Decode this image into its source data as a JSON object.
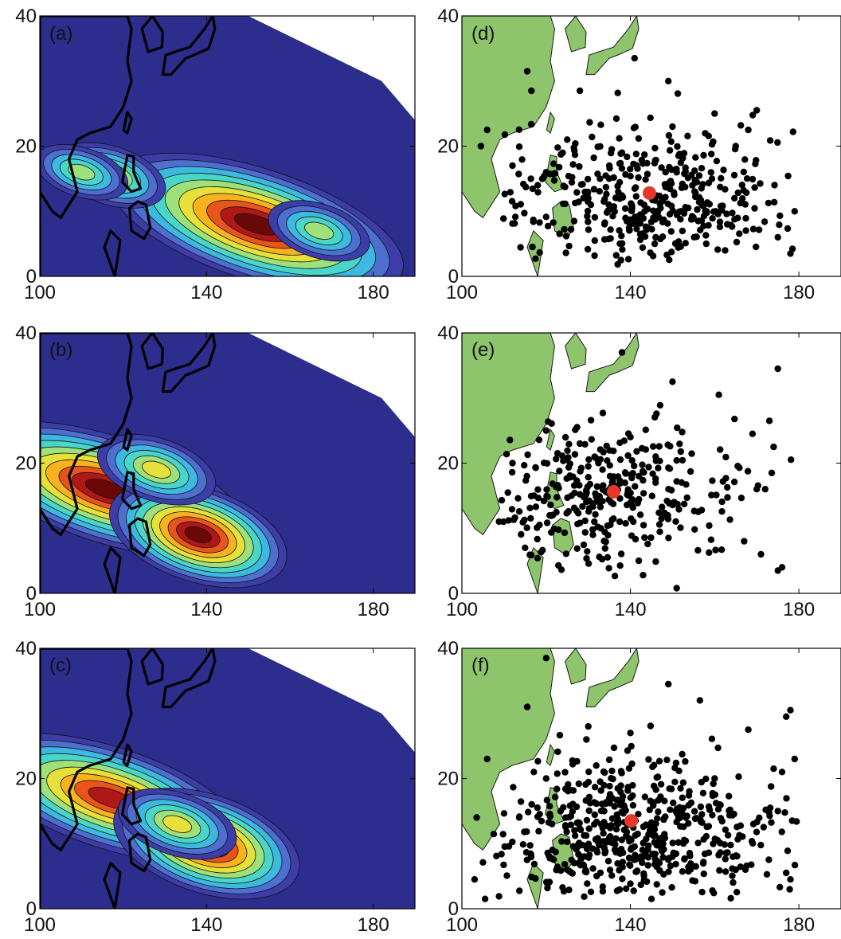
{
  "figure": {
    "x_ticks": [
      "100",
      "140",
      "180"
    ],
    "y_ticks": [
      "0",
      "20",
      "40"
    ],
    "colors": {
      "land": "#8dc46c",
      "ocean_background": "#2d2d8e",
      "coast": "#000000",
      "point": "#000000",
      "centroid": "#e8362a"
    },
    "contour_palette": [
      "#2d2d8e",
      "#3d3da8",
      "#4d6fd0",
      "#3db8e0",
      "#49d6c8",
      "#9ee07a",
      "#e6e03a",
      "#f7b21e",
      "#e8541c",
      "#b01818",
      "#6a0808"
    ]
  },
  "chart_data": [
    {
      "type": "heatmap",
      "panel": "(a)",
      "xlim": [
        100,
        190
      ],
      "ylim": [
        0,
        40
      ],
      "hotspots": [
        {
          "lon": 152,
          "lat": 8,
          "level": 1.0
        },
        {
          "lon": 117,
          "lat": 15.5,
          "level": 0.55
        },
        {
          "lon": 110,
          "lat": 16,
          "level": 0.45
        },
        {
          "lon": 167,
          "lat": 7,
          "level": 0.5
        }
      ]
    },
    {
      "type": "heatmap",
      "panel": "(b)",
      "xlim": [
        100,
        190
      ],
      "ylim": [
        0,
        40
      ],
      "hotspots": [
        {
          "lon": 116,
          "lat": 16,
          "level": 0.95
        },
        {
          "lon": 138,
          "lat": 9,
          "level": 0.95
        },
        {
          "lon": 128,
          "lat": 19,
          "level": 0.6
        }
      ]
    },
    {
      "type": "heatmap",
      "panel": "(c)",
      "xlim": [
        100,
        190
      ],
      "ylim": [
        0,
        40
      ],
      "hotspots": [
        {
          "lon": 117,
          "lat": 17,
          "level": 0.9
        },
        {
          "lon": 140,
          "lat": 10,
          "level": 1.0
        },
        {
          "lon": 133,
          "lat": 13,
          "level": 0.6
        }
      ]
    },
    {
      "type": "scatter",
      "panel": "(d)",
      "xlim": [
        100,
        190
      ],
      "ylim": [
        0,
        40
      ],
      "centroid": {
        "lon": 144.5,
        "lat": 12.8
      },
      "spread": {
        "lon_mean": 144,
        "lon_sd": 18,
        "lat_mean": 12,
        "lat_sd": 5.5
      },
      "points": [
        [
          104.5,
          20
        ],
        [
          106,
          22.5
        ],
        [
          115.5,
          31.5
        ],
        [
          116.5,
          28.5
        ],
        [
          128,
          28.5
        ],
        [
          141,
          33.5
        ],
        [
          149,
          30
        ],
        [
          160,
          25
        ],
        [
          170,
          25.5
        ],
        [
          178,
          3.5
        ],
        [
          179,
          10
        ],
        [
          168,
          22.5
        ],
        [
          165,
          20
        ],
        [
          150,
          23
        ],
        [
          112,
          17
        ],
        [
          118,
          14
        ],
        [
          120,
          16
        ],
        [
          125,
          21
        ],
        [
          130,
          12
        ],
        [
          135,
          17
        ],
        [
          140,
          8
        ],
        [
          146,
          6
        ],
        [
          152,
          10
        ],
        [
          158,
          5
        ],
        [
          163,
          8
        ],
        [
          175,
          6
        ]
      ]
    },
    {
      "type": "scatter",
      "panel": "(e)",
      "xlim": [
        100,
        190
      ],
      "ylim": [
        0,
        40
      ],
      "centroid": {
        "lon": 136,
        "lat": 15.6
      },
      "spread": {
        "lon_mean": 135,
        "lon_sd": 14,
        "lat_mean": 15,
        "lat_sd": 5.5
      },
      "points": [
        [
          138,
          37
        ],
        [
          175,
          34.5
        ],
        [
          150,
          32.5
        ],
        [
          161,
          30.5
        ],
        [
          173,
          26.5
        ],
        [
          169,
          24.5
        ],
        [
          174,
          22.5
        ],
        [
          170,
          16
        ],
        [
          172,
          16
        ],
        [
          167,
          8
        ],
        [
          171,
          6
        ],
        [
          175,
          3.5
        ],
        [
          176,
          4
        ],
        [
          151,
          0.8
        ],
        [
          112,
          20
        ],
        [
          115,
          7
        ],
        [
          120,
          25
        ],
        [
          128,
          23
        ],
        [
          140,
          24
        ],
        [
          146,
          21
        ],
        [
          133,
          10
        ],
        [
          142,
          5
        ]
      ]
    },
    {
      "type": "scatter",
      "panel": "(f)",
      "xlim": [
        100,
        190
      ],
      "ylim": [
        0,
        40
      ],
      "centroid": {
        "lon": 140.2,
        "lat": 13.5
      },
      "spread": {
        "lon_mean": 140,
        "lon_sd": 17,
        "lat_mean": 12,
        "lat_sd": 5.5
      },
      "points": [
        [
          120,
          38.5
        ],
        [
          115.5,
          31
        ],
        [
          106,
          23
        ],
        [
          103.5,
          14
        ],
        [
          103,
          4.5
        ],
        [
          105.5,
          1.5
        ],
        [
          149,
          34.5
        ],
        [
          156.5,
          32
        ],
        [
          168,
          27.5
        ],
        [
          177,
          29.5
        ],
        [
          178,
          30.5
        ],
        [
          174,
          21.5
        ],
        [
          176,
          21
        ],
        [
          179,
          23
        ],
        [
          175,
          15
        ],
        [
          177,
          5.5
        ],
        [
          178,
          4.5
        ],
        [
          145,
          1.5
        ],
        [
          130,
          28
        ],
        [
          140,
          27
        ],
        [
          160,
          20
        ],
        [
          120,
          20
        ],
        [
          135,
          17
        ],
        [
          150,
          8
        ],
        [
          165,
          6
        ],
        [
          125,
          6
        ]
      ]
    }
  ]
}
